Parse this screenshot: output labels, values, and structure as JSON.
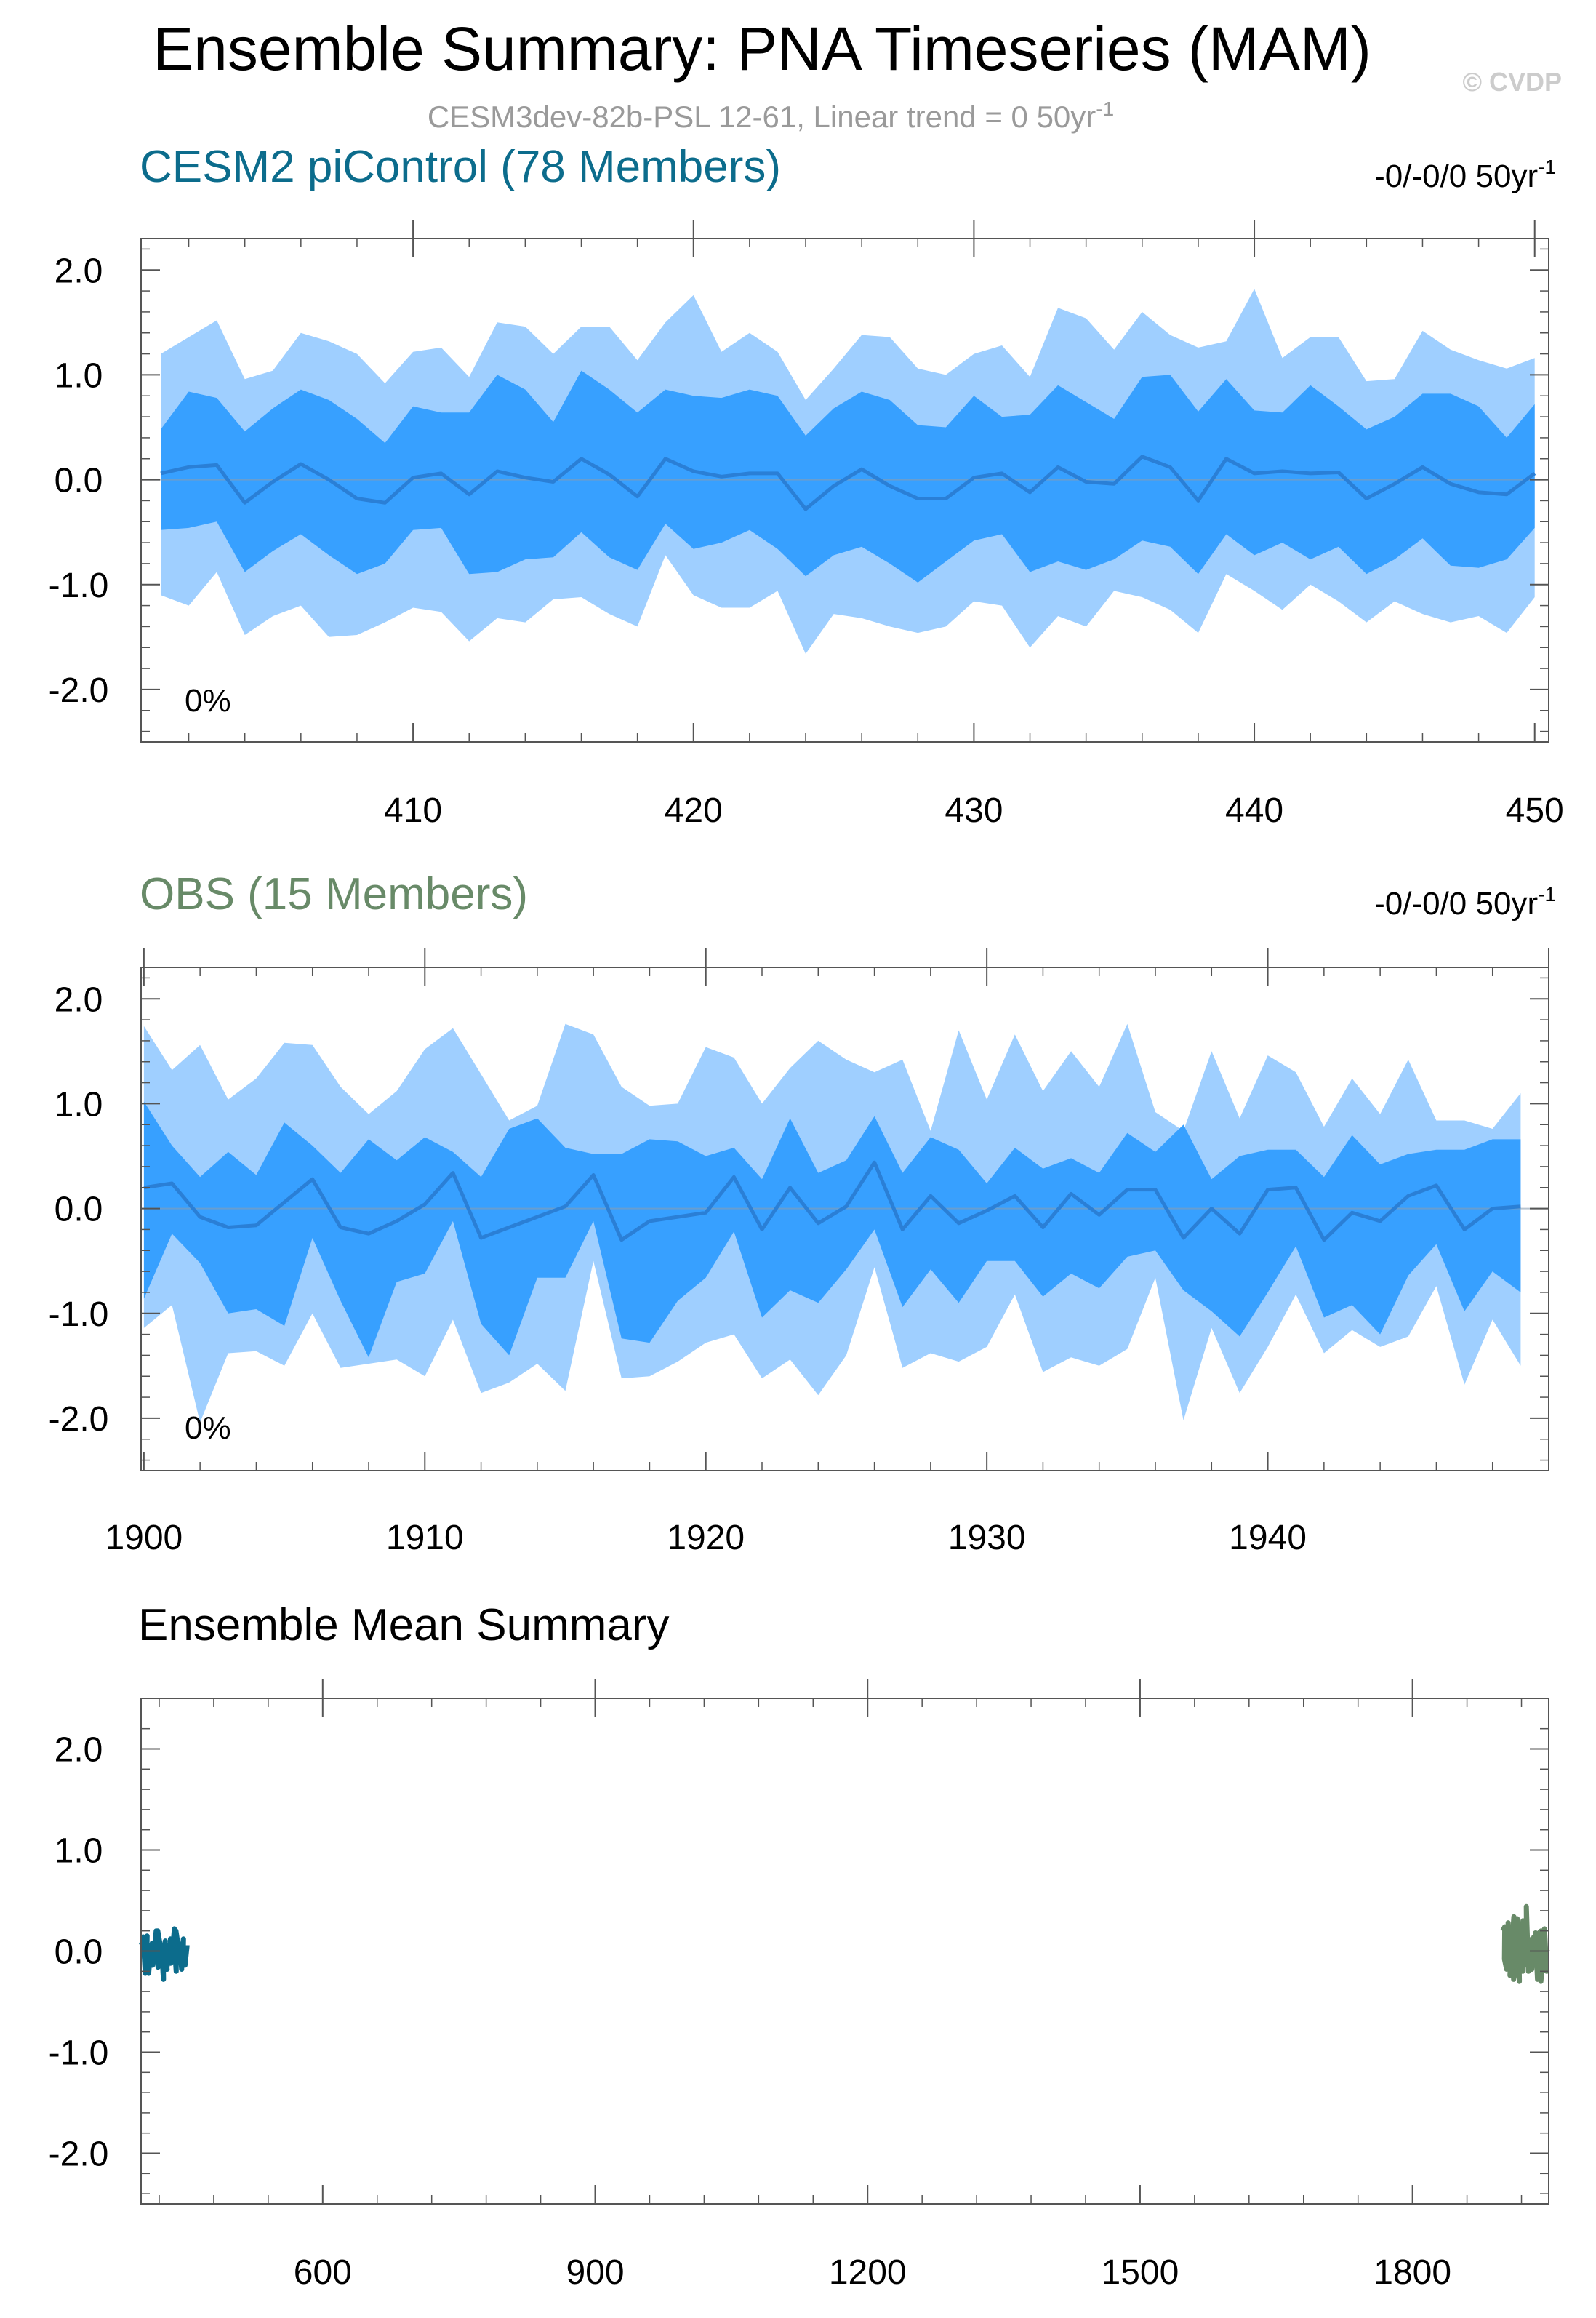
{
  "figure": {
    "title": "Ensemble Summary: PNA Timeseries (MAM)",
    "subtitle_main": "CESM3dev-82b-PSL 12-61, Linear trend = 0 50yr",
    "subtitle_sup": "-1",
    "watermark": "© CVDP"
  },
  "colors": {
    "outer_band": "#9fcfff",
    "inner_band": "#37a0ff",
    "mean_line": "#2a7fd6",
    "model_label": "#0c6c8c",
    "obs_label": "#688a68",
    "axis": "#555555",
    "text": "#000000",
    "subtitle": "#9a9a9a"
  },
  "chart_data": [
    {
      "type": "area",
      "id": "model",
      "title": "CESM2 piControl (78 Members)",
      "trend_label": "-0/-0/0 50yr",
      "trend_sup": "-1",
      "percent_label": "0%",
      "xlabel": "",
      "ylabel": "",
      "xlim": [
        400.3,
        450.5
      ],
      "ylim": [
        -2.5,
        2.3
      ],
      "xticks": [
        410,
        420,
        430,
        440,
        450
      ],
      "yticks": [
        2.0,
        1.0,
        0.0,
        -1.0,
        -2.0
      ],
      "ytick_labels": [
        "2.0",
        "1.0",
        "0.0",
        "-1.0",
        "-2.0"
      ],
      "series": [
        {
          "name": "ensemble mean",
          "x_start": 401,
          "values": [
            0.06,
            0.12,
            0.14,
            -0.22,
            -0.02,
            0.15,
            0.0,
            -0.18,
            -0.22,
            0.02,
            0.06,
            -0.14,
            0.08,
            0.02,
            -0.02,
            0.2,
            0.05,
            -0.16,
            0.2,
            0.08,
            0.03,
            0.06,
            0.06,
            -0.28,
            -0.06,
            0.1,
            -0.06,
            -0.18,
            -0.18,
            0.02,
            0.06,
            -0.12,
            0.12,
            -0.02,
            -0.04,
            0.22,
            0.12,
            -0.2,
            0.2,
            0.06,
            0.08,
            0.06,
            0.07,
            -0.18,
            -0.04,
            0.12,
            -0.04,
            -0.12,
            -0.14,
            0.06
          ]
        },
        {
          "name": "inner upper",
          "x_start": 401,
          "values": [
            0.48,
            0.84,
            0.78,
            0.46,
            0.68,
            0.86,
            0.76,
            0.58,
            0.35,
            0.7,
            0.64,
            0.64,
            1.0,
            0.86,
            0.55,
            1.04,
            0.86,
            0.64,
            0.86,
            0.8,
            0.78,
            0.86,
            0.8,
            0.42,
            0.68,
            0.84,
            0.76,
            0.52,
            0.5,
            0.8,
            0.6,
            0.62,
            0.9,
            0.74,
            0.58,
            0.98,
            1.0,
            0.65,
            0.96,
            0.66,
            0.64,
            0.9,
            0.7,
            0.48,
            0.6,
            0.82,
            0.82,
            0.7,
            0.4,
            0.72
          ]
        },
        {
          "name": "inner lower",
          "x_start": 401,
          "values": [
            -0.48,
            -0.46,
            -0.4,
            -0.88,
            -0.68,
            -0.52,
            -0.72,
            -0.9,
            -0.8,
            -0.48,
            -0.46,
            -0.9,
            -0.88,
            -0.76,
            -0.74,
            -0.5,
            -0.74,
            -0.86,
            -0.42,
            -0.66,
            -0.6,
            -0.48,
            -0.66,
            -0.92,
            -0.72,
            -0.64,
            -0.8,
            -0.98,
            -0.78,
            -0.58,
            -0.52,
            -0.88,
            -0.78,
            -0.86,
            -0.76,
            -0.58,
            -0.64,
            -0.9,
            -0.52,
            -0.72,
            -0.6,
            -0.76,
            -0.64,
            -0.9,
            -0.76,
            -0.56,
            -0.82,
            -0.84,
            -0.76,
            -0.46
          ]
        },
        {
          "name": "outer upper",
          "x_start": 401,
          "values": [
            1.2,
            1.36,
            1.52,
            0.96,
            1.04,
            1.4,
            1.32,
            1.2,
            0.92,
            1.22,
            1.26,
            0.98,
            1.5,
            1.46,
            1.2,
            1.46,
            1.46,
            1.14,
            1.5,
            1.76,
            1.22,
            1.4,
            1.22,
            0.76,
            1.06,
            1.38,
            1.36,
            1.06,
            1.0,
            1.2,
            1.28,
            0.98,
            1.64,
            1.54,
            1.24,
            1.6,
            1.38,
            1.26,
            1.32,
            1.82,
            1.16,
            1.36,
            1.36,
            0.94,
            0.96,
            1.42,
            1.24,
            1.14,
            1.06,
            1.16
          ]
        },
        {
          "name": "outer lower",
          "x_start": 401,
          "values": [
            -1.1,
            -1.2,
            -0.88,
            -1.48,
            -1.3,
            -1.2,
            -1.5,
            -1.48,
            -1.36,
            -1.22,
            -1.26,
            -1.54,
            -1.32,
            -1.36,
            -1.14,
            -1.12,
            -1.28,
            -1.4,
            -0.72,
            -1.1,
            -1.22,
            -1.22,
            -1.06,
            -1.66,
            -1.28,
            -1.32,
            -1.4,
            -1.46,
            -1.4,
            -1.16,
            -1.2,
            -1.6,
            -1.3,
            -1.4,
            -1.06,
            -1.12,
            -1.24,
            -1.46,
            -0.9,
            -1.06,
            -1.24,
            -1.0,
            -1.16,
            -1.36,
            -1.16,
            -1.28,
            -1.36,
            -1.3,
            -1.46,
            -1.12
          ]
        }
      ]
    },
    {
      "type": "area",
      "id": "obs",
      "title": "OBS (15 Members)",
      "trend_label": "-0/-0/0 50yr",
      "trend_sup": "-1",
      "percent_label": "0%",
      "xlabel": "",
      "ylabel": "",
      "xlim": [
        1899.9,
        1950.0
      ],
      "ylim": [
        -2.5,
        2.3
      ],
      "xticks": [
        1900,
        1910,
        1920,
        1930,
        1940
      ],
      "yticks": [
        2.0,
        1.0,
        0.0,
        -1.0,
        -2.0
      ],
      "ytick_labels": [
        "2.0",
        "1.0",
        "0.0",
        "-1.0",
        "-2.0"
      ],
      "series": [
        {
          "name": "ensemble mean",
          "x_start": 1900,
          "values": [
            0.2,
            0.24,
            -0.08,
            -0.18,
            -0.16,
            0.06,
            0.28,
            -0.18,
            -0.24,
            -0.12,
            0.04,
            0.34,
            -0.28,
            -0.18,
            -0.08,
            0.02,
            0.32,
            -0.3,
            -0.12,
            -0.08,
            -0.04,
            0.3,
            -0.2,
            0.2,
            -0.14,
            0.02,
            0.44,
            -0.2,
            0.12,
            -0.14,
            -0.02,
            0.12,
            -0.18,
            0.14,
            -0.06,
            0.18,
            0.18,
            -0.28,
            0.0,
            -0.24,
            0.18,
            0.2,
            -0.3,
            -0.04,
            -0.12,
            0.12,
            0.22,
            -0.2,
            0.0,
            0.02
          ]
        },
        {
          "name": "inner upper",
          "x_start": 1900,
          "values": [
            1.02,
            0.6,
            0.3,
            0.54,
            0.32,
            0.82,
            0.6,
            0.34,
            0.66,
            0.46,
            0.68,
            0.54,
            0.3,
            0.76,
            0.86,
            0.58,
            0.52,
            0.52,
            0.66,
            0.64,
            0.5,
            0.58,
            0.28,
            0.86,
            0.34,
            0.46,
            0.88,
            0.34,
            0.68,
            0.56,
            0.24,
            0.58,
            0.38,
            0.48,
            0.34,
            0.72,
            0.54,
            0.8,
            0.28,
            0.5,
            0.56,
            0.56,
            0.3,
            0.7,
            0.42,
            0.52,
            0.56,
            0.56,
            0.66,
            0.66
          ]
        },
        {
          "name": "inner lower",
          "x_start": 1900,
          "values": [
            -0.86,
            -0.24,
            -0.52,
            -1.0,
            -0.96,
            -1.12,
            -0.28,
            -0.88,
            -1.42,
            -0.7,
            -0.62,
            -0.12,
            -1.1,
            -1.4,
            -0.66,
            -0.66,
            -0.12,
            -1.24,
            -1.28,
            -0.88,
            -0.66,
            -0.22,
            -1.04,
            -0.78,
            -0.9,
            -0.58,
            -0.2,
            -0.94,
            -0.58,
            -0.9,
            -0.5,
            -0.5,
            -0.84,
            -0.62,
            -0.76,
            -0.46,
            -0.4,
            -0.78,
            -0.98,
            -1.22,
            -0.8,
            -0.36,
            -1.04,
            -0.92,
            -1.2,
            -0.64,
            -0.34,
            -0.98,
            -0.6,
            -0.8
          ]
        },
        {
          "name": "outer upper",
          "x_start": 1900,
          "values": [
            1.74,
            1.32,
            1.56,
            1.04,
            1.24,
            1.58,
            1.56,
            1.16,
            0.9,
            1.12,
            1.52,
            1.72,
            1.28,
            0.84,
            0.98,
            1.76,
            1.66,
            1.16,
            0.98,
            1.0,
            1.54,
            1.44,
            1.0,
            1.34,
            1.6,
            1.42,
            1.3,
            1.42,
            0.74,
            1.7,
            1.04,
            1.66,
            1.12,
            1.5,
            1.16,
            1.76,
            0.92,
            0.74,
            1.5,
            0.86,
            1.46,
            1.3,
            0.78,
            1.24,
            0.9,
            1.42,
            0.84,
            0.84,
            0.76,
            1.1
          ]
        },
        {
          "name": "outer lower",
          "x_start": 1900,
          "values": [
            -1.14,
            -0.92,
            -2.04,
            -1.38,
            -1.36,
            -1.5,
            -1.0,
            -1.52,
            -1.48,
            -1.44,
            -1.6,
            -1.06,
            -1.76,
            -1.66,
            -1.48,
            -1.74,
            -0.5,
            -1.62,
            -1.6,
            -1.46,
            -1.28,
            -1.2,
            -1.62,
            -1.44,
            -1.78,
            -1.4,
            -0.56,
            -1.52,
            -1.38,
            -1.46,
            -1.32,
            -0.82,
            -1.56,
            -1.42,
            -1.5,
            -1.34,
            -0.66,
            -2.02,
            -1.14,
            -1.76,
            -1.32,
            -0.82,
            -1.38,
            -1.16,
            -1.32,
            -1.22,
            -0.74,
            -1.68,
            -1.06,
            -1.5
          ]
        }
      ]
    },
    {
      "type": "line",
      "id": "summary",
      "title": "Ensemble Mean Summary",
      "xlabel": "",
      "ylabel": "",
      "xlim": [
        400,
        1950
      ],
      "ylim": [
        -2.5,
        2.5
      ],
      "xticks": [
        600,
        900,
        1200,
        1500,
        1800
      ],
      "yticks": [
        2.0,
        1.0,
        0.0,
        -1.0,
        -2.0
      ],
      "ytick_labels": [
        "2.0",
        "1.0",
        "0.0",
        "-1.0",
        "-2.0"
      ],
      "series": [
        {
          "name": "CESM2 piControl",
          "color": "#0c6c8c",
          "x_start": 401,
          "x_end": 450,
          "values": [
            0.06,
            0.12,
            0.14,
            -0.22,
            -0.02,
            0.15,
            0.0,
            -0.18,
            -0.22,
            0.02,
            0.06,
            -0.14,
            0.08,
            0.02,
            -0.02,
            0.2,
            0.05,
            -0.16,
            0.2,
            0.08,
            0.03,
            0.06,
            0.06,
            -0.28,
            -0.06,
            0.1,
            -0.06,
            -0.18,
            -0.18,
            0.02,
            0.06,
            -0.12,
            0.12,
            -0.02,
            -0.04,
            0.22,
            0.12,
            -0.2,
            0.2,
            0.06,
            0.08,
            0.06,
            0.07,
            -0.18,
            -0.04,
            0.12,
            -0.04,
            -0.12,
            -0.14,
            0.06
          ]
        },
        {
          "name": "OBS",
          "color": "#688a68",
          "x_start": 1900,
          "x_end": 1949,
          "values": [
            0.2,
            0.24,
            -0.08,
            -0.18,
            -0.16,
            0.06,
            0.28,
            -0.18,
            -0.24,
            -0.12,
            0.04,
            0.34,
            -0.28,
            -0.18,
            -0.08,
            0.02,
            0.32,
            -0.3,
            -0.12,
            -0.08,
            -0.04,
            0.3,
            -0.2,
            0.2,
            -0.14,
            0.02,
            0.44,
            -0.2,
            0.12,
            -0.14,
            -0.02,
            0.12,
            -0.18,
            0.14,
            -0.06,
            0.18,
            0.18,
            -0.28,
            0.0,
            -0.24,
            0.18,
            0.2,
            -0.3,
            -0.04,
            -0.12,
            0.12,
            0.22,
            -0.2,
            0.0,
            0.02
          ]
        }
      ]
    }
  ]
}
